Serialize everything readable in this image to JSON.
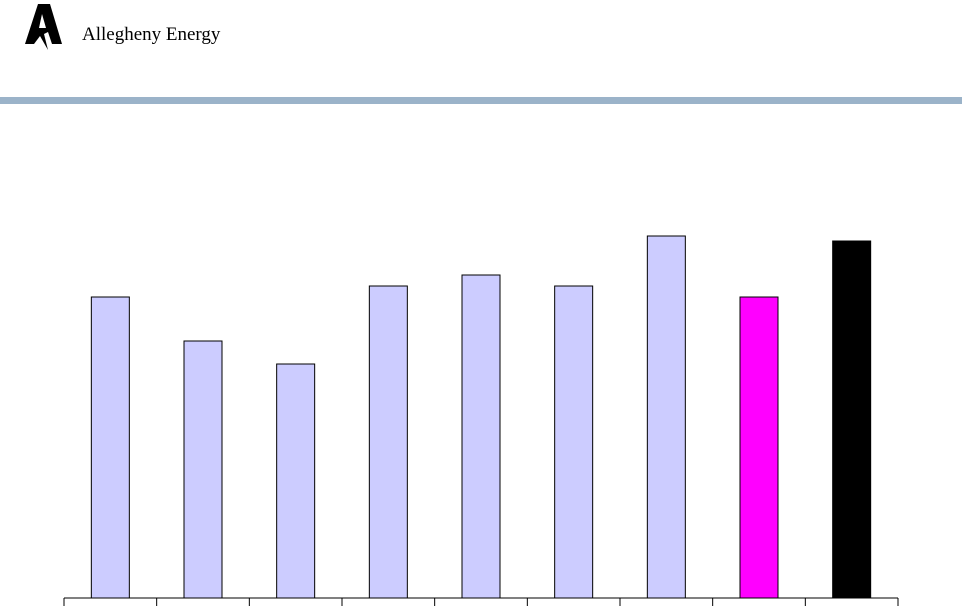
{
  "header": {
    "logo_text": "Allegheny Energy"
  },
  "chart_data": {
    "type": "bar",
    "categories": [
      null,
      null,
      null,
      null,
      null,
      null,
      null,
      null,
      null
    ],
    "values": [
      301,
      257,
      234,
      312,
      323,
      312,
      362,
      301,
      357
    ],
    "colors": [
      "#ccccff",
      "#ccccff",
      "#ccccff",
      "#ccccff",
      "#ccccff",
      "#ccccff",
      "#ccccff",
      "#ff00ff",
      "#000000"
    ]
  }
}
